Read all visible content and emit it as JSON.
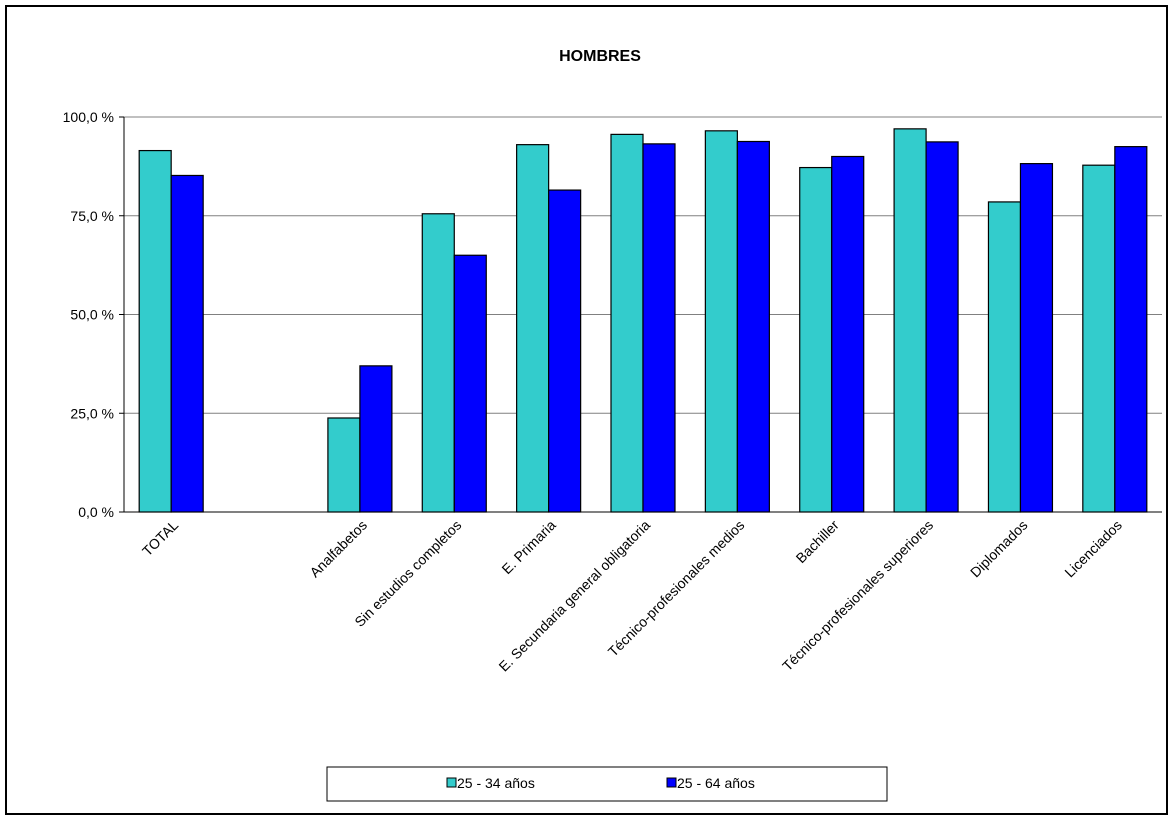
{
  "chart_data": {
    "type": "bar",
    "title": "HOMBRES",
    "xlabel": "",
    "ylabel": "",
    "ylim": [
      0,
      100
    ],
    "yticks": [
      "0,0 %",
      "25,0 %",
      "50,0 %",
      "75,0 %",
      "100,0 %"
    ],
    "ytick_values": [
      0,
      25,
      50,
      75,
      100
    ],
    "grid": true,
    "legend_position": "bottom",
    "categories": [
      "TOTAL",
      "",
      "Analfabetos",
      "Sin estudios completos",
      "E. Primaria",
      "E. Secundaria general obligatoria",
      "Técnico-profesionales medios",
      "Bachiller",
      "Técnico-profesionales superiores",
      "Diplomados",
      "Licenciados"
    ],
    "series": [
      {
        "name": "25 - 34 años",
        "color": "#33CCCC",
        "values": [
          91.5,
          null,
          23.8,
          75.5,
          93.0,
          95.6,
          96.5,
          87.2,
          97.0,
          78.5,
          87.8
        ]
      },
      {
        "name": "25 - 64 años",
        "color": "#0000FF",
        "values": [
          85.2,
          null,
          37.0,
          65.0,
          81.5,
          93.2,
          93.8,
          90.0,
          93.7,
          88.2,
          92.5
        ]
      }
    ]
  }
}
